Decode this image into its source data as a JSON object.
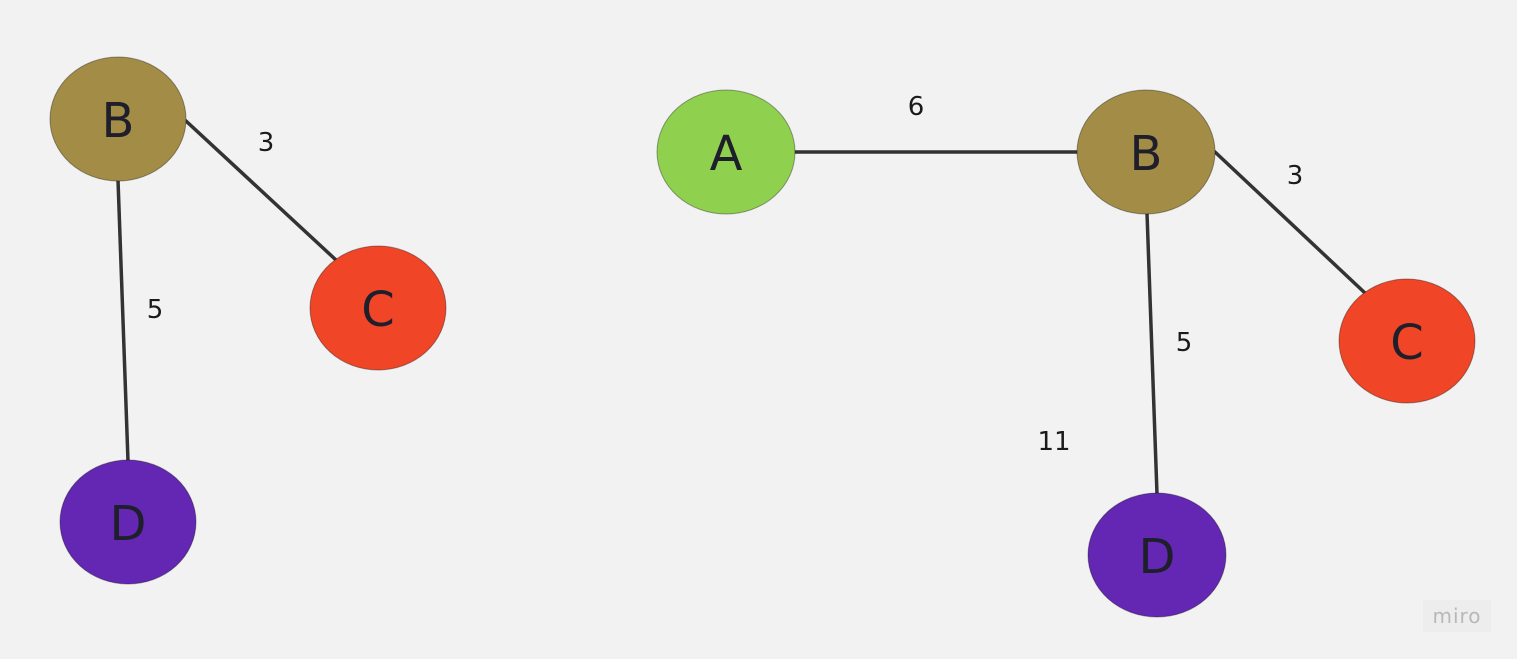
{
  "colors": {
    "background": "#f2f2f2",
    "edge": "#333333",
    "B": "#a38c45",
    "C": "#f04527",
    "D": "#6427b3",
    "A": "#8fd14f"
  },
  "left_graph": {
    "nodes": {
      "B": "B",
      "C": "C",
      "D": "D"
    },
    "edges": {
      "b_c": "3",
      "b_d": "5"
    }
  },
  "right_graph": {
    "nodes": {
      "A": "A",
      "B": "B",
      "C": "C",
      "D": "D"
    },
    "edges": {
      "a_b": "6",
      "b_c": "3",
      "b_d": "5"
    },
    "annotation": "11"
  },
  "watermark": "miro"
}
